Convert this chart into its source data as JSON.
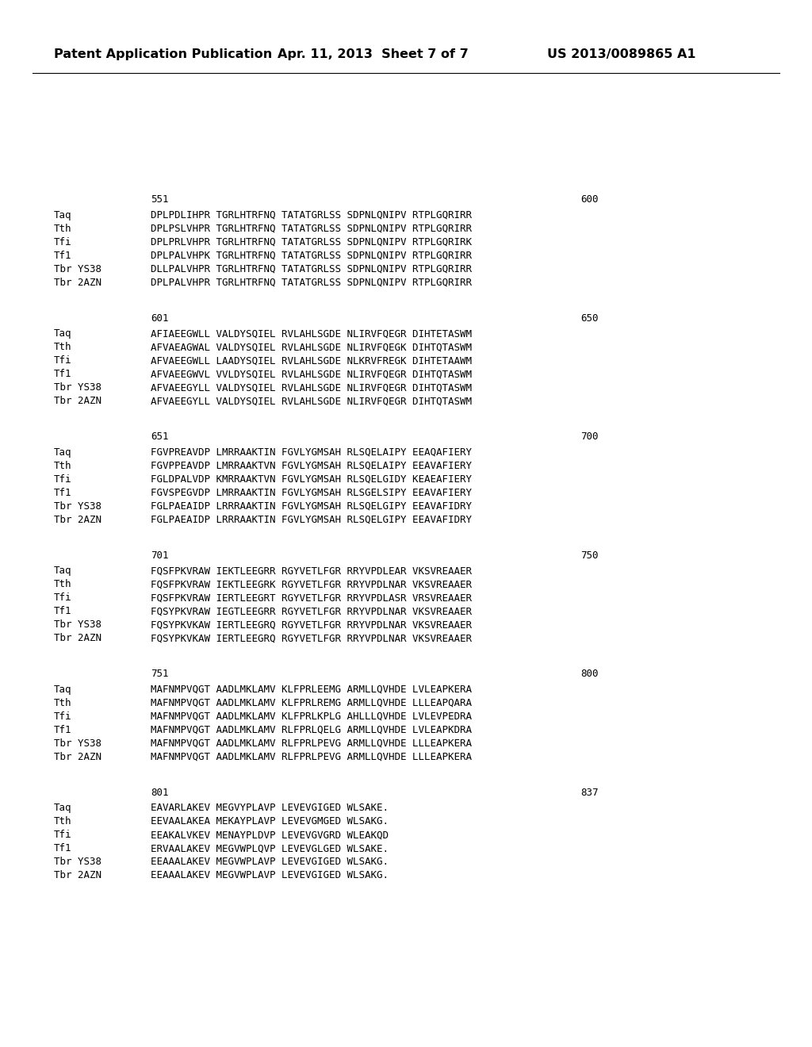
{
  "header_left": "Patent Application Publication",
  "header_mid": "Apr. 11, 2013  Sheet 7 of 7",
  "header_right": "US 2013/0089865 A1",
  "background_color": "#ffffff",
  "text_color": "#000000",
  "blocks": [
    {
      "range_start": "551",
      "range_end": "600",
      "sequences": [
        [
          "Taq",
          "DPLPDLIHPR TGRLHTRFNQ TATATGRLSS SDPNLQNIPV RTPLGQRIRR"
        ],
        [
          "Tth",
          "DPLPSLVHPR TGRLHTRFNQ TATATGRLSS SDPNLQNIPV RTPLGQRIRR"
        ],
        [
          "Tfi",
          "DPLPRLVHPR TGRLHTRFNQ TATATGRLSS SDPNLQNIPV RTPLGQRIRK"
        ],
        [
          "Tf1",
          "DPLPALVHPK TGRLHTRFNQ TATATGRLSS SDPNLQNIPV RTPLGQRIRR"
        ],
        [
          "Tbr YS38",
          "DLLPALVHPR TGRLHTRFNQ TATATGRLSS SDPNLQNIPV RTPLGQRIRR"
        ],
        [
          "Tbr 2AZN",
          "DPLPALVHPR TGRLHTRFNQ TATATGRLSS SDPNLQNIPV RTPLGQRIRR"
        ]
      ]
    },
    {
      "range_start": "601",
      "range_end": "650",
      "sequences": [
        [
          "Taq",
          "AFIAEEGWLL VALDYSQIEL RVLAHLSGDE NLIRVFQEGR DIHTETASWM"
        ],
        [
          "Tth",
          "AFVAEAGWAL VALDYSQIEL RVLAHLSGDE NLIRVFQEGK DIHTQTASWM"
        ],
        [
          "Tfi",
          "AFVAEEGWLL LAADYSQIEL RVLAHLSGDE NLKRVFREGK DIHTETAAWM"
        ],
        [
          "Tf1",
          "AFVAEEGWVL VVLDYSQIEL RVLAHLSGDE NLIRVFQEGR DIHTQTASWM"
        ],
        [
          "Tbr YS38",
          "AFVAEEGYLL VALDYSQIEL RVLAHLSGDE NLIRVFQEGR DIHTQTASWM"
        ],
        [
          "Tbr 2AZN",
          "AFVAEEGYLL VALDYSQIEL RVLAHLSGDE NLIRVFQEGR DIHTQTASWM"
        ]
      ]
    },
    {
      "range_start": "651",
      "range_end": "700",
      "dot_before_range": true,
      "sequences": [
        [
          "Taq",
          "FGVPREAVDP LMRRAAKTIN FGVLYGMSAH RLSQELAIPY EEAQAFIERY"
        ],
        [
          "Tth",
          "FGVPPEAVDP LMRRAAKTVN FGVLYGMSAH RLSQELAIPY EEAVAFIERY"
        ],
        [
          "Tfi",
          "FGLDPALVDP KMRRAAKTVN FGVLYGMSAH RLSQELGIDY KEAEAFIERY"
        ],
        [
          "Tf1",
          "FGVSPEGVDP LMRRAAKTIN FGVLYGMSAH RLSGELSIPY EEAVAFIERY"
        ],
        [
          "Tbr YS38",
          "FGLPAEAIDP LRRRAAKTIN FGVLYGMSAH RLSQELGIPY EEAVAFIDRY"
        ],
        [
          "Tbr 2AZN",
          "FGLPAEAIDP LRRRAAKTIN FGVLYGMSAH RLSQELGIPY EEAVAFIDRY"
        ]
      ]
    },
    {
      "range_start": "701",
      "range_end": "750",
      "dot_before_range": true,
      "dot_before_seqs": [
        true,
        true,
        true,
        false,
        false,
        false
      ],
      "sequences": [
        [
          "Taq",
          "FQSFPKVRAW IEKTLEEGRR RGYVETLFGR RRYVPDLEAR VKSVREAAER"
        ],
        [
          "Tth",
          "FQSFPKVRAW IEKTLEEGRK RGYVETLFGR RRYVPDLNAR VKSVREAAER"
        ],
        [
          "Tfi",
          "FQSFPKVRAW IERTLEEGRT RGYVETLFGR RRYVPDLASR VRSVREAAER"
        ],
        [
          "Tf1",
          "FQSYPKVRAW IEGTLEEGRR RGYVETLFGR RRYVPDLNAR VKSVREAAER"
        ],
        [
          "Tbr YS38",
          "FQSYPKVKAW IERTLEEGRQ RGYVETLFGR RRYVPDLNAR VKSVREAAER"
        ],
        [
          "Tbr 2AZN",
          "FQSYPKVKAW IERTLEEGRQ RGYVETLFGR RRYVPDLNAR VKSVREAAER"
        ]
      ]
    },
    {
      "range_start": "751",
      "range_end": "800",
      "sequences": [
        [
          "Taq",
          "MAFNMPVQGT AADLMKLAMV KLFPRLEEMG ARMLLQVHDE LVLEAPKERA"
        ],
        [
          "Tth",
          "MAFNMPVQGT AADLMKLAMV KLFPRLREMG ARMLLQVHDE LLLEAPQARA"
        ],
        [
          "Tfi",
          "MAFNMPVQGT AADLMKLAMV KLFPRLKPLG AHLLLQVHDE LVLEVPEDRA"
        ],
        [
          "Tf1",
          "MAFNMPVQGT AADLMKLAMV RLFPRLQELG ARMLLQVHDE LVLEAPKDRA"
        ],
        [
          "Tbr YS38",
          "MAFNMPVQGT AADLMKLAMV RLFPRLPEVG ARMLLQVHDE LLLEAPKERA"
        ],
        [
          "Tbr 2AZN",
          "MAFNMPVQGT AADLMKLAMV RLFPRLPEVG ARMLLQVHDE LLLEAPKERA"
        ]
      ]
    },
    {
      "range_start": "801",
      "range_end": "837",
      "sequences": [
        [
          "Taq",
          "EAVARLAKEV MEGVYPLAVP LEVEVGIGED WLSAKE."
        ],
        [
          "Tth",
          "EEVAALAKEA MEKAYPLAVP LEVEVGMGED WLSAKG."
        ],
        [
          "Tfi",
          "EEAKALVKEV MENAYPLDVP LEVEVGVGRD WLEAKQD"
        ],
        [
          "Tf1",
          "ERVAALAKEV MEGVWPLQVP LEVEVGLGED WLSAKE."
        ],
        [
          "Tbr YS38",
          "EEAAALAKEV MEGVWPLAVP LEVEVGIGED WLSAKG."
        ],
        [
          "Tbr 2AZN",
          "EEAAALAKEV MEGVWPLAVP LEVEVGIGED WLSAKG."
        ]
      ]
    }
  ]
}
